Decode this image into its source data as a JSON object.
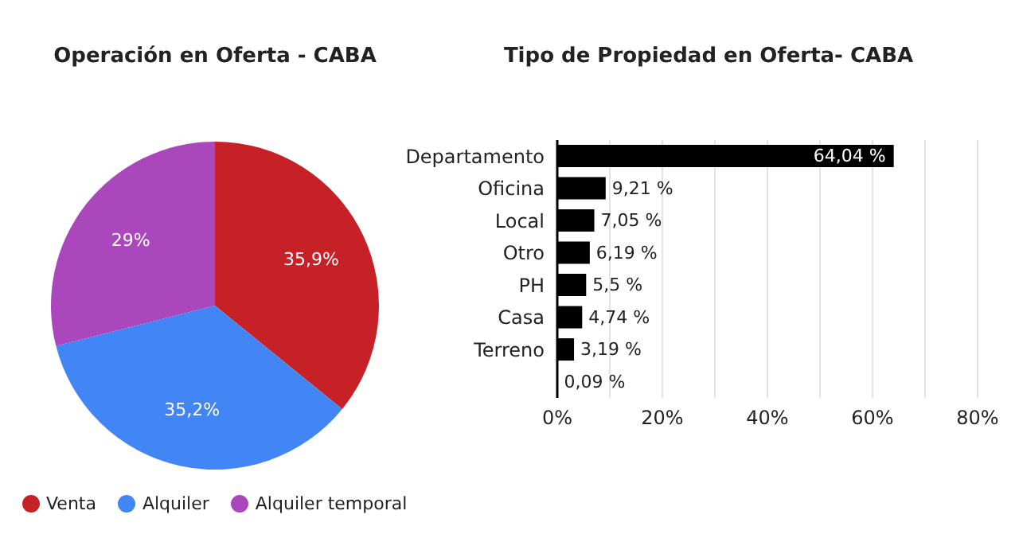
{
  "chart_data": [
    {
      "type": "pie",
      "title": "Operación en Oferta - CABA",
      "categories": [
        "Venta",
        "Alquiler",
        "Alquiler temporal"
      ],
      "values": [
        35.9,
        35.2,
        29
      ],
      "colors": [
        "#c62127",
        "#4285f4",
        "#ab47bc"
      ],
      "value_labels": [
        "35,9%",
        "35,2%",
        "29%"
      ],
      "legend": "bottom"
    },
    {
      "type": "bar",
      "orientation": "horizontal",
      "title": "Tipo de Propiedad en Oferta- CABA",
      "categories": [
        "Departamento",
        "Oficina",
        "Local",
        "Otro",
        "PH",
        "Casa",
        "Terreno",
        null
      ],
      "values": [
        64.04,
        9.21,
        7.05,
        6.19,
        5.5,
        4.74,
        3.19,
        0.09
      ],
      "color": "#000000",
      "value_labels": [
        "64,04 %",
        "9,21 %",
        "7,05 %",
        "6,19 %",
        "5,5 %",
        "4,74 %",
        "3,19 %",
        "0,09 %"
      ],
      "xlim": [
        0,
        80
      ],
      "xticks": [
        {
          "value": 0,
          "label": "0%"
        },
        {
          "value": 10,
          "label": null
        },
        {
          "value": 20,
          "label": "20%"
        },
        {
          "value": 30,
          "label": null
        },
        {
          "value": 40,
          "label": "40%"
        },
        {
          "value": 50,
          "label": null
        },
        {
          "value": 60,
          "label": "60%"
        },
        {
          "value": 70,
          "label": null
        },
        {
          "value": 80,
          "label": "80%"
        }
      ],
      "grid": "x"
    }
  ]
}
